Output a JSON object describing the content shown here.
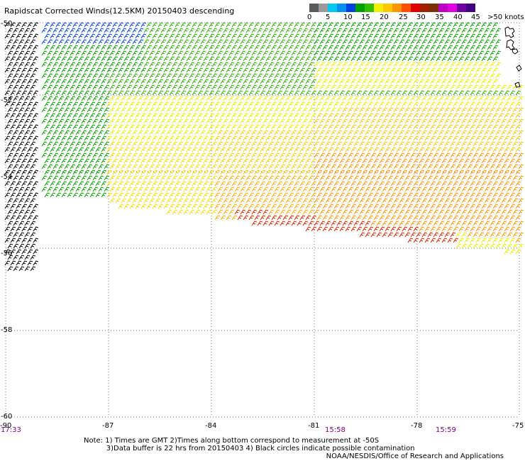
{
  "title": "Rapidscat Corrected Winds(12.5KM) 20150403 descending",
  "scale": {
    "colors": [
      "#5a5a5a",
      "#9a9a9a",
      "#00c8f0",
      "#0090f0",
      "#0040e0",
      "#00a000",
      "#30c000",
      "#f0f000",
      "#ffc800",
      "#ff9600",
      "#ff5000",
      "#e00000",
      "#a02000",
      "#7a3000",
      "#c000c0",
      "#e000e0",
      "#7000a0",
      "#400080"
    ],
    "labels": [
      "0",
      "5",
      "10",
      "15",
      "20",
      "25",
      "30",
      "35",
      "40",
      "45",
      ">50 knots"
    ]
  },
  "axes": {
    "lon_ticks": [
      "-90",
      "-87",
      "-84",
      "-81",
      "-78",
      "-75"
    ],
    "lat_ticks": [
      "-50",
      "-52",
      "-54",
      "-56",
      "-58",
      "-60"
    ],
    "time_labels": [
      "17:33",
      "15:58",
      "15:59"
    ]
  },
  "notes": {
    "line1": "Note: 1) Times are GMT 2)Times along bottom correspond to measurement at -50S",
    "line2": "          3)Data buffer is 22 hrs from 20150403 4) Black circles indicate possible contamination"
  },
  "credit": "NOAA/NESDIS/Office of Research and Applications"
}
